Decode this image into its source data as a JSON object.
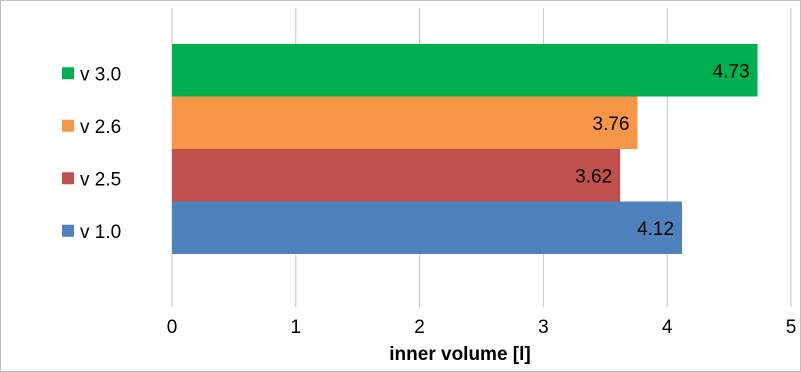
{
  "chart_data": {
    "type": "bar",
    "orientation": "horizontal",
    "categories": [
      "v 3.0",
      "v 2.6",
      "v 2.5",
      "v 1.0"
    ],
    "values": [
      4.73,
      3.76,
      3.62,
      4.12
    ],
    "data_labels": [
      "4.73",
      "3.76",
      "3.62",
      "4.12"
    ],
    "colors": [
      "#00b050",
      "#f79646",
      "#c0504d",
      "#4f81bd"
    ],
    "xlabel": "inner volume [l]",
    "xlim": [
      0,
      5
    ],
    "xticks": [
      "0",
      "1",
      "2",
      "3",
      "4",
      "5"
    ],
    "grid": "vertical",
    "legend": "left"
  }
}
